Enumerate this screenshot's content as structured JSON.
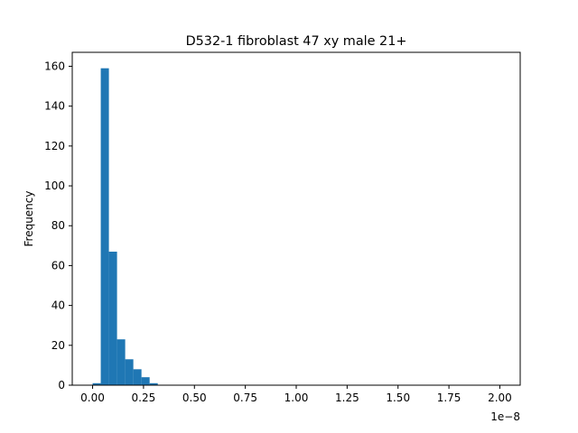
{
  "chart_data": {
    "type": "bar",
    "title": "D532-1 fibroblast 47 xy male 21+",
    "xlabel": "",
    "ylabel": "Frequency",
    "x_offset_label": "1e−8",
    "bin_width": 0.04,
    "bins": [
      {
        "x": 0.02,
        "count": 1
      },
      {
        "x": 0.06,
        "count": 159
      },
      {
        "x": 0.1,
        "count": 67
      },
      {
        "x": 0.14,
        "count": 23
      },
      {
        "x": 0.18,
        "count": 13
      },
      {
        "x": 0.22,
        "count": 8
      },
      {
        "x": 0.26,
        "count": 4
      },
      {
        "x": 0.3,
        "count": 1
      }
    ],
    "xlim": [
      -0.1,
      2.1
    ],
    "ylim": [
      0,
      167
    ],
    "xticks": [
      {
        "value": 0.0,
        "label": "0.00"
      },
      {
        "value": 0.25,
        "label": "0.25"
      },
      {
        "value": 0.5,
        "label": "0.50"
      },
      {
        "value": 0.75,
        "label": "0.75"
      },
      {
        "value": 1.0,
        "label": "1.00"
      },
      {
        "value": 1.25,
        "label": "1.25"
      },
      {
        "value": 1.5,
        "label": "1.50"
      },
      {
        "value": 1.75,
        "label": "1.75"
      },
      {
        "value": 2.0,
        "label": "2.00"
      }
    ],
    "yticks": [
      {
        "value": 0,
        "label": "0"
      },
      {
        "value": 20,
        "label": "20"
      },
      {
        "value": 40,
        "label": "40"
      },
      {
        "value": 60,
        "label": "60"
      },
      {
        "value": 80,
        "label": "80"
      },
      {
        "value": 100,
        "label": "100"
      },
      {
        "value": 120,
        "label": "120"
      },
      {
        "value": 140,
        "label": "140"
      },
      {
        "value": 160,
        "label": "160"
      }
    ],
    "grid": false,
    "bar_color": "#1f77b4"
  }
}
